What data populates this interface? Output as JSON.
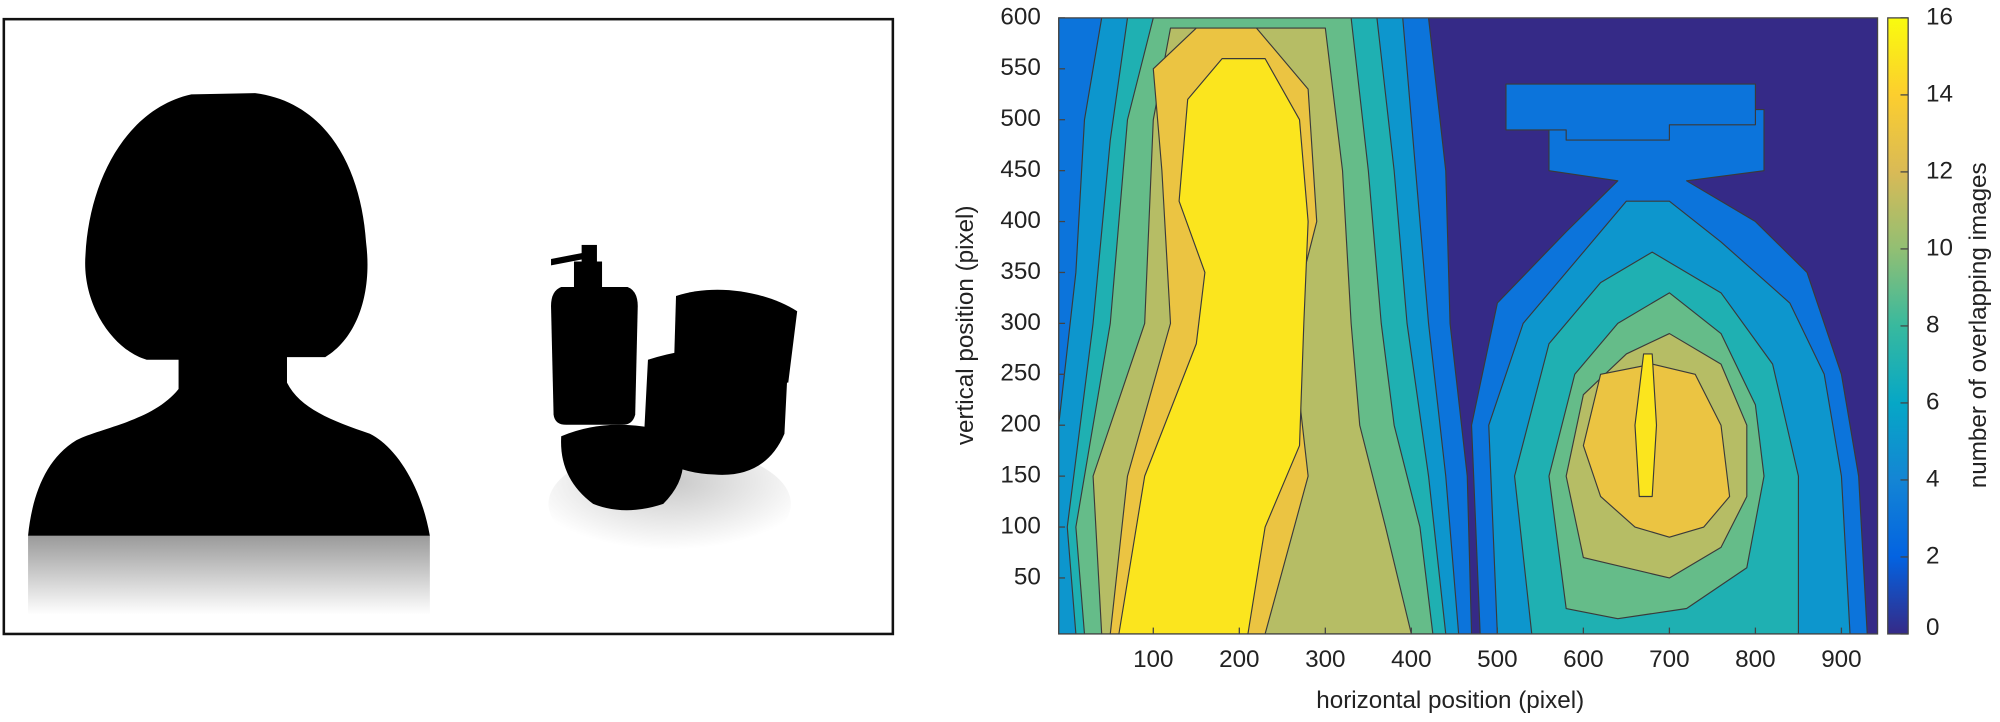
{
  "chart_data": {
    "type": "contour",
    "xlabel": "horizontal position (pixel)",
    "ylabel": "vertical position (pixel)",
    "xlim": [
      -10,
      942
    ],
    "ylim": [
      -5,
      600
    ],
    "xticks": [
      100,
      200,
      300,
      400,
      500,
      600,
      700,
      800,
      900
    ],
    "yticks": [
      50,
      100,
      150,
      200,
      250,
      300,
      350,
      400,
      450,
      500,
      550,
      600
    ],
    "colormap": [
      "#352a87",
      "#0363e1",
      "#1485d4",
      "#06a7c6",
      "#38b99e",
      "#92bf73",
      "#d9ba56",
      "#fcce2e",
      "#f9fb0e"
    ],
    "colorbar": {
      "label": "number of overlapping images",
      "clim": [
        0,
        16
      ],
      "ticks": [
        0,
        2,
        4,
        6,
        8,
        10,
        12,
        14,
        16
      ]
    },
    "regions": [
      {
        "level": 3,
        "x": [
          -10,
          -10,
          420,
          440,
          445,
          465,
          470
        ],
        "y": [
          -5,
          600,
          600,
          450,
          300,
          150,
          -5
        ]
      },
      {
        "level": 5,
        "x": [
          -10,
          -10,
          10,
          20,
          40,
          390,
          405,
          420,
          440,
          455
        ],
        "y": [
          -5,
          200,
          350,
          500,
          600,
          600,
          450,
          300,
          150,
          -5
        ]
      },
      {
        "level": 7,
        "x": [
          10,
          0,
          30,
          50,
          70,
          360,
          380,
          395,
          420,
          440
        ],
        "y": [
          -5,
          100,
          300,
          480,
          600,
          600,
          450,
          300,
          150,
          -5
        ]
      },
      {
        "level": 9,
        "x": [
          20,
          10,
          50,
          70,
          100,
          330,
          350,
          365,
          380,
          410,
          425
        ],
        "y": [
          -5,
          100,
          300,
          500,
          600,
          600,
          450,
          300,
          200,
          100,
          -5
        ]
      },
      {
        "level": 11,
        "x": [
          40,
          30,
          90,
          100,
          120,
          300,
          320,
          330,
          340,
          370,
          400
        ],
        "y": [
          -5,
          150,
          300,
          500,
          590,
          590,
          450,
          300,
          200,
          100,
          -5
        ]
      },
      {
        "level": 13,
        "x": [
          50,
          70,
          120,
          110,
          100,
          150,
          220,
          280,
          290,
          260,
          280,
          230
        ],
        "y": [
          -5,
          150,
          300,
          450,
          550,
          590,
          590,
          530,
          400,
          300,
          150,
          -5
        ]
      },
      {
        "level": 15,
        "x": [
          60,
          90,
          150,
          160,
          130,
          140,
          180,
          230,
          270,
          280,
          275,
          270,
          230,
          210
        ],
        "y": [
          -5,
          150,
          280,
          350,
          420,
          520,
          560,
          560,
          500,
          400,
          300,
          180,
          100,
          -5
        ]
      },
      {
        "level": 3,
        "x": [
          480,
          470,
          500,
          580,
          640,
          560,
          560,
          810,
          810,
          720,
          800,
          860,
          900,
          920,
          930
        ],
        "y": [
          -5,
          200,
          320,
          390,
          440,
          450,
          510,
          510,
          450,
          440,
          400,
          350,
          250,
          150,
          -5
        ]
      },
      {
        "level": 3,
        "x": [
          510,
          800,
          800,
          700,
          700,
          580,
          580,
          510
        ],
        "y": [
          535,
          535,
          495,
          495,
          480,
          480,
          490,
          490
        ]
      },
      {
        "level": 5,
        "x": [
          500,
          490,
          530,
          600,
          650,
          700,
          760,
          840,
          880,
          900,
          910
        ],
        "y": [
          -5,
          200,
          300,
          370,
          420,
          420,
          380,
          320,
          250,
          150,
          -5
        ]
      },
      {
        "level": 7,
        "x": [
          540,
          520,
          560,
          620,
          680,
          760,
          820,
          850,
          850
        ],
        "y": [
          -5,
          150,
          280,
          340,
          370,
          330,
          260,
          150,
          -5
        ]
      },
      {
        "level": 9,
        "x": [
          580,
          560,
          590,
          640,
          700,
          760,
          800,
          810,
          790,
          720,
          640
        ],
        "y": [
          20,
          150,
          250,
          300,
          330,
          290,
          220,
          150,
          60,
          20,
          10
        ]
      },
      {
        "level": 11,
        "x": [
          600,
          580,
          600,
          650,
          700,
          760,
          790,
          790,
          760,
          700
        ],
        "y": [
          70,
          150,
          230,
          270,
          290,
          260,
          200,
          130,
          80,
          50
        ]
      },
      {
        "level": 13,
        "x": [
          620,
          600,
          620,
          680,
          730,
          760,
          770,
          740,
          700,
          660
        ],
        "y": [
          130,
          180,
          250,
          260,
          250,
          200,
          130,
          100,
          90,
          100
        ]
      },
      {
        "level": 15,
        "x": [
          665,
          660,
          670,
          680,
          685,
          680
        ],
        "y": [
          130,
          200,
          270,
          270,
          200,
          130
        ]
      }
    ]
  }
}
